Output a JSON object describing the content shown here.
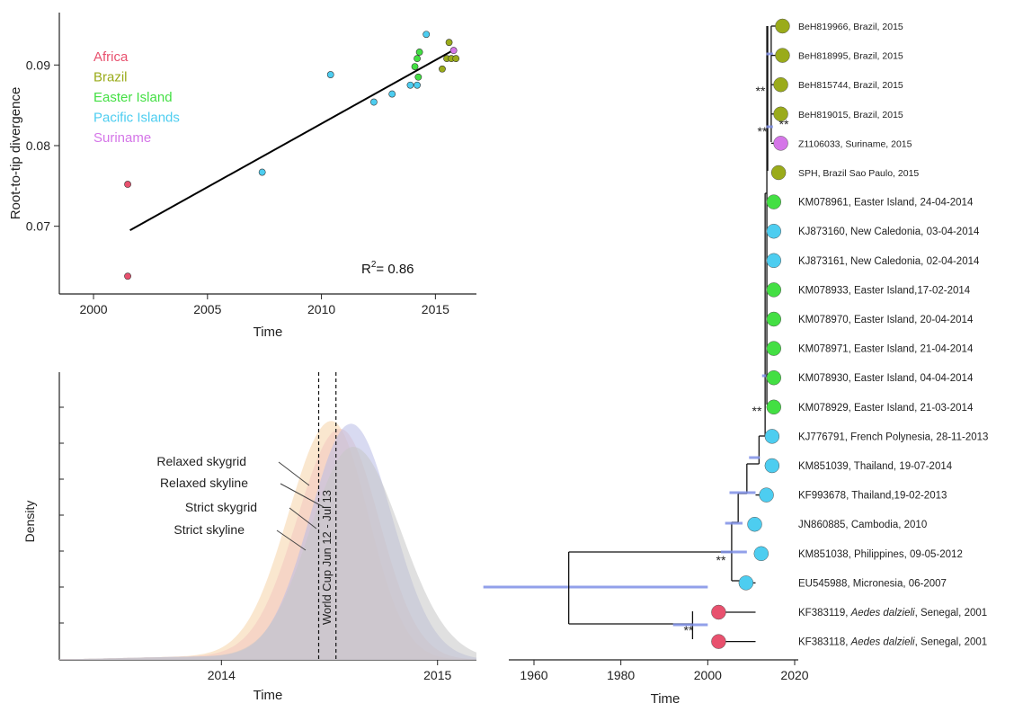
{
  "colors": {
    "africa": "#e8516e",
    "brazil": "#9aab1a",
    "easter": "#43df43",
    "pacific": "#4dcdf0",
    "suriname": "#d576e8",
    "trend": "#000000",
    "hpd": "#7f8fe6"
  },
  "chart_data": [
    {
      "type": "scatter",
      "xlabel": "Time",
      "ylabel": "Root-to-tip divergence",
      "xlim": [
        1998.5,
        2016.8
      ],
      "ylim": [
        0.0616,
        0.0965
      ],
      "xticks": [
        2000,
        2005,
        2010,
        2015
      ],
      "xtick_labels": [
        "2000",
        "2005",
        "2010",
        "2015"
      ],
      "yticks": [
        0.07,
        0.08,
        0.09
      ],
      "ytick_labels": [
        "0.07",
        "0.08",
        "0.09"
      ],
      "legend_position": "top-left",
      "annotation": {
        "prefix": "R",
        "sup": "2",
        "suffix": "= 0.86"
      },
      "trendline": {
        "x": [
          2001.6,
          2015.7
        ],
        "y": [
          0.0695,
          0.0917
        ]
      },
      "series": [
        {
          "name": "Africa",
          "color_key": "africa",
          "points": [
            [
              2001.5,
              0.0752
            ],
            [
              2001.5,
              0.0638
            ]
          ]
        },
        {
          "name": "Brazil",
          "color_key": "brazil",
          "points": [
            [
              2015.3,
              0.0895
            ],
            [
              2015.5,
              0.0908
            ],
            [
              2015.6,
              0.0928
            ],
            [
              2015.7,
              0.0908
            ],
            [
              2015.9,
              0.0908
            ]
          ]
        },
        {
          "name": "Easter Island",
          "color_key": "easter",
          "points": [
            [
              2014.1,
              0.0898
            ],
            [
              2014.2,
              0.0908
            ],
            [
              2014.3,
              0.0916
            ],
            [
              2014.25,
              0.0885
            ]
          ]
        },
        {
          "name": "Pacific Islands",
          "color_key": "pacific",
          "points": [
            [
              2007.4,
              0.0767
            ],
            [
              2010.4,
              0.0888
            ],
            [
              2012.3,
              0.0854
            ],
            [
              2013.1,
              0.0864
            ],
            [
              2013.9,
              0.0875
            ],
            [
              2014.2,
              0.0875
            ],
            [
              2014.6,
              0.0938
            ]
          ]
        },
        {
          "name": "Suriname",
          "color_key": "suriname",
          "points": [
            [
              2015.8,
              0.0918
            ]
          ]
        }
      ]
    },
    {
      "type": "area",
      "xlabel": "Time",
      "ylabel": "Density",
      "xlim": [
        2013.25,
        2015.18
      ],
      "xticks": [
        2014,
        2015
      ],
      "xtick_labels": [
        "2014",
        "2015"
      ],
      "ytick_count": 7,
      "series_labels": [
        "Relaxed skygrid",
        "Relaxed skyline",
        "Strict skygrid",
        "Strict skyline"
      ],
      "series_colors": [
        "#f5d4a8",
        "#f2c6c0",
        "#b8bbe6",
        "#c6c6c6"
      ],
      "series": [
        {
          "name": "Relaxed skygrid",
          "peak": 2014.51,
          "height": 0.93,
          "sl": 0.2,
          "sr": 0.17
        },
        {
          "name": "Relaxed skyline",
          "peak": 2014.55,
          "height": 0.9,
          "sl": 0.2,
          "sr": 0.18
        },
        {
          "name": "Strict skygrid",
          "peak": 2014.6,
          "height": 0.92,
          "sl": 0.19,
          "sr": 0.19
        },
        {
          "name": "Strict skyline",
          "peak": 2014.61,
          "height": 0.83,
          "sl": 0.2,
          "sr": 0.22
        }
      ],
      "vlines": [
        2014.45,
        2014.53
      ],
      "vline_label": "World Cup Jun 12 - Jul 13"
    },
    {
      "type": "tree",
      "xlabel": "Time",
      "xlim": [
        1946,
        2020
      ],
      "xticks": [
        1960,
        1980,
        2000,
        2020
      ],
      "xtick_labels": [
        "1960",
        "1980",
        "2000",
        "2020"
      ],
      "root_time": 1968,
      "root_hpd": [
        1950,
        2000
      ],
      "tips": [
        {
          "label": "BeH819966, Brazil, 2015",
          "color_key": "brazil",
          "x": 2017.2,
          "small": true
        },
        {
          "label": "BeH818995, Brazil, 2015",
          "color_key": "brazil",
          "x": 2017.2,
          "small": true
        },
        {
          "label": "BeH815744, Brazil, 2015",
          "color_key": "brazil",
          "x": 2016.8,
          "small": true
        },
        {
          "label": "BeH819015, Brazil, 2015",
          "color_key": "brazil",
          "x": 2016.8,
          "small": true
        },
        {
          "label": "Z1106033, Suriname, 2015",
          "color_key": "suriname",
          "x": 2016.8,
          "small": true
        },
        {
          "label": "SPH, Brazil Sao Paulo, 2015",
          "color_key": "brazil",
          "x": 2016.3,
          "small": true
        },
        {
          "label": "KM078961, Easter Island, 24-04-2014",
          "color_key": "easter",
          "x": 2015.2
        },
        {
          "label": "KJ873160, New Caledonia, 03-04-2014",
          "color_key": "pacific",
          "x": 2015.2
        },
        {
          "label": "KJ873161, New Caledonia, 02-04-2014",
          "color_key": "pacific",
          "x": 2015.2
        },
        {
          "label": "KM078933, Easter Island,17-02-2014",
          "color_key": "easter",
          "x": 2015.2
        },
        {
          "label": "KM078970, Easter Island, 20-04-2014",
          "color_key": "easter",
          "x": 2015.2
        },
        {
          "label": "KM078971, Easter Island, 21-04-2014",
          "color_key": "easter",
          "x": 2015.2
        },
        {
          "label": "KM078930, Easter Island, 04-04-2014",
          "color_key": "easter",
          "x": 2015.2
        },
        {
          "label": "KM078929, Easter Island, 21-03-2014",
          "color_key": "easter",
          "x": 2015.2
        },
        {
          "label": "KJ776791, French Polynesia, 28-11-2013",
          "color_key": "pacific",
          "x": 2014.8
        },
        {
          "label": "KM851039, Thailand, 19-07-2014",
          "color_key": "pacific",
          "x": 2014.8
        },
        {
          "label": "KF993678, Thailand,19-02-2013",
          "color_key": "pacific",
          "x": 2013.5
        },
        {
          "label": "JN860885, Cambodia, 2010",
          "color_key": "pacific",
          "x": 2010.8
        },
        {
          "label": "KM851038, Philippines, 09-05-2012",
          "color_key": "pacific",
          "x": 2012.3
        },
        {
          "label": "EU545988, Micronesia, 06-2007",
          "color_key": "pacific",
          "x": 2008.8
        },
        {
          "label_prefix": "KF383119, ",
          "label_italic": "Aedes dalzieli",
          "label_suffix": ", Senegal, 2001",
          "color_key": "africa",
          "x": 2002.5
        },
        {
          "label_prefix": "KF383118, ",
          "label_italic": "Aedes dalzieli",
          "label_suffix": ", Senegal, 2001",
          "color_key": "africa",
          "x": 2002.5
        }
      ],
      "support_marks": [
        "**",
        "**",
        "**",
        "**",
        "**",
        "**"
      ]
    }
  ]
}
